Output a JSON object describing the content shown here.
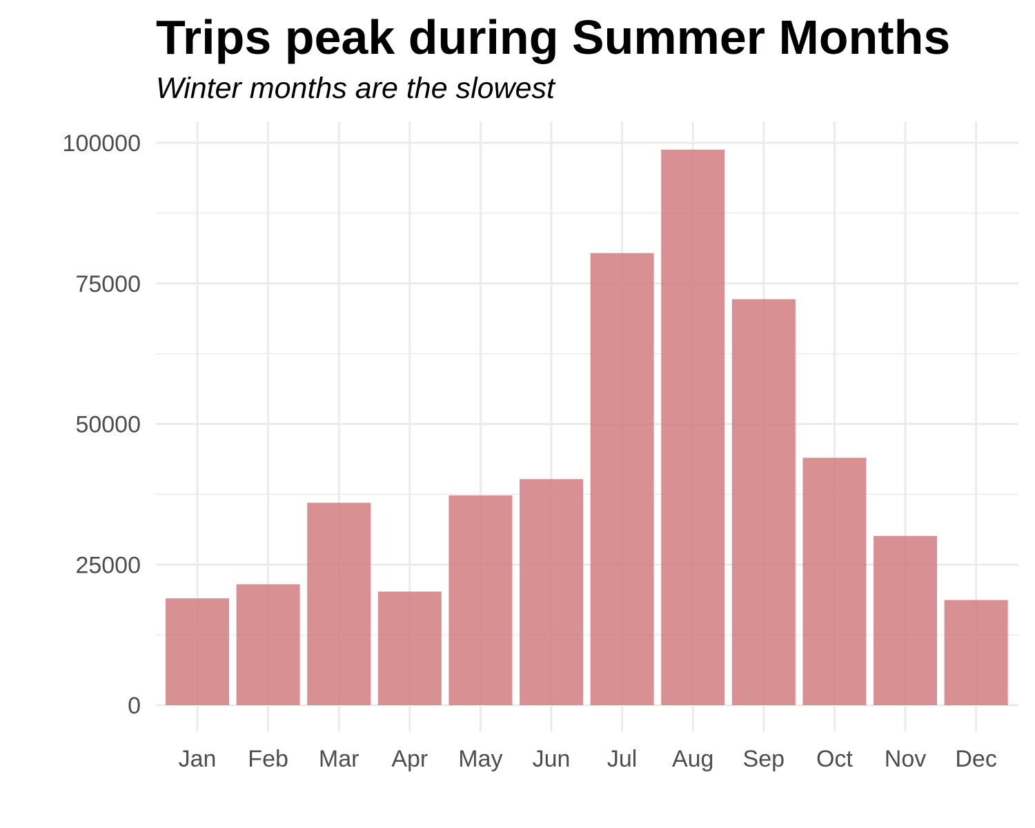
{
  "chart_data": {
    "type": "bar",
    "title": "Trips peak during Summer Months",
    "subtitle": "Winter months are the slowest",
    "xlabel": "",
    "ylabel": "",
    "categories": [
      "Jan",
      "Feb",
      "Mar",
      "Apr",
      "May",
      "Jun",
      "Jul",
      "Aug",
      "Sep",
      "Oct",
      "Nov",
      "Dec"
    ],
    "values": [
      19000,
      21500,
      36000,
      20200,
      37300,
      40200,
      80400,
      98800,
      72200,
      44000,
      30100,
      18700
    ],
    "ylim": [
      0,
      100000
    ],
    "yticks": [
      0,
      25000,
      50000,
      75000,
      100000
    ],
    "ytick_labels": [
      "0",
      "25000",
      "50000",
      "75000",
      "100000"
    ],
    "bar_color": "#d1777b",
    "grid": true,
    "legend": "none"
  }
}
